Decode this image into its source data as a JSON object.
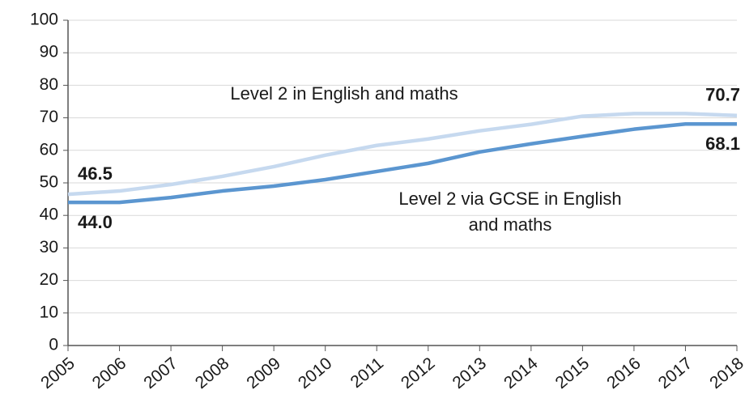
{
  "chart_data": {
    "type": "line",
    "categories": [
      "2005",
      "2006",
      "2007",
      "2008",
      "2009",
      "2010",
      "2011",
      "2012",
      "2013",
      "2014",
      "2015",
      "2016",
      "2017",
      "2018"
    ],
    "series": [
      {
        "name": "Level 2 in English and maths",
        "color": "#c6d9ef",
        "values": [
          46.5,
          47.5,
          49.5,
          52,
          55,
          58.5,
          61.5,
          63.5,
          66,
          68,
          70.5,
          71.3,
          71.3,
          70.7
        ],
        "value_labels": [
          "46.5",
          null,
          null,
          null,
          null,
          null,
          null,
          null,
          null,
          null,
          null,
          null,
          null,
          "70.7"
        ]
      },
      {
        "name": "Level 2 via GCSE in English and maths",
        "color": "#5b96d0",
        "values": [
          44.0,
          44.0,
          45.5,
          47.5,
          49,
          51,
          53.5,
          56,
          59.5,
          62,
          64.3,
          66.5,
          68.1,
          68.1
        ],
        "value_labels": [
          "44.0",
          null,
          null,
          null,
          null,
          null,
          null,
          null,
          null,
          null,
          null,
          null,
          null,
          "68.1"
        ]
      }
    ],
    "ylim": [
      0,
      100
    ],
    "yticks": [
      0,
      10,
      20,
      30,
      40,
      50,
      60,
      70,
      80,
      90,
      100
    ],
    "grid": true
  }
}
